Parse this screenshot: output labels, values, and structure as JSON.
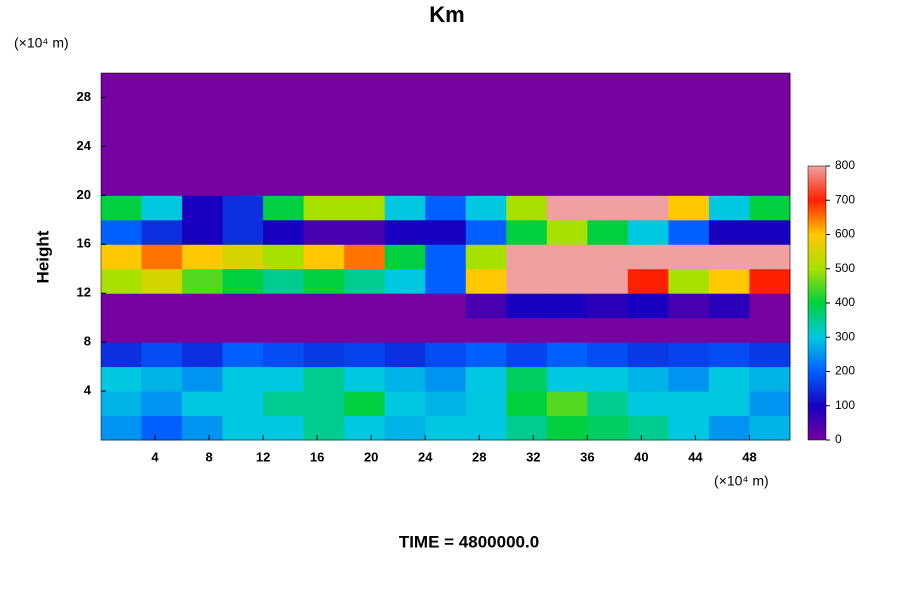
{
  "chart_data": {
    "type": "heatmap",
    "title": "Km",
    "x_unit_label": "(×10⁴ m)",
    "y_unit_label": "(×10⁴ m)",
    "ylabel": "Height",
    "footer": "TIME = 4800000.0",
    "xlim": [
      0,
      51
    ],
    "ylim": [
      0,
      30
    ],
    "xticks": [
      4,
      8,
      12,
      16,
      20,
      24,
      28,
      32,
      36,
      40,
      44,
      48
    ],
    "yticks": [
      4,
      8,
      12,
      16,
      20,
      24,
      28
    ],
    "xbins": [
      0,
      3,
      6,
      9,
      12,
      15,
      18,
      21,
      24,
      27,
      30,
      33,
      36,
      39,
      42,
      45,
      48,
      51
    ],
    "ybins": [
      0,
      2,
      4,
      6,
      8,
      10,
      12,
      14,
      16,
      18,
      20,
      22,
      24,
      26,
      28,
      30
    ],
    "z": [
      [
        250,
        200,
        250,
        300,
        300,
        350,
        300,
        280,
        300,
        300,
        350,
        400,
        380,
        350,
        300,
        250,
        280
      ],
      [
        280,
        250,
        300,
        300,
        350,
        350,
        400,
        300,
        280,
        300,
        400,
        450,
        350,
        300,
        300,
        300,
        250
      ],
      [
        300,
        280,
        250,
        300,
        300,
        350,
        300,
        280,
        250,
        300,
        380,
        300,
        300,
        280,
        250,
        300,
        280
      ],
      [
        150,
        180,
        150,
        200,
        180,
        160,
        170,
        150,
        180,
        200,
        170,
        200,
        180,
        160,
        170,
        180,
        160
      ],
      [
        0,
        0,
        0,
        0,
        0,
        0,
        0,
        0,
        0,
        0,
        0,
        0,
        0,
        0,
        0,
        0,
        0
      ],
      [
        0,
        0,
        0,
        0,
        0,
        0,
        0,
        0,
        0,
        50,
        100,
        100,
        80,
        100,
        50,
        80,
        0
      ],
      [
        500,
        550,
        450,
        400,
        350,
        400,
        350,
        300,
        200,
        600,
        800,
        800,
        800,
        700,
        500,
        600,
        700
      ],
      [
        600,
        650,
        600,
        550,
        500,
        600,
        650,
        400,
        200,
        500,
        800,
        800,
        800,
        800,
        800,
        800,
        800
      ],
      [
        200,
        150,
        100,
        150,
        100,
        50,
        50,
        100,
        100,
        200,
        400,
        500,
        400,
        300,
        200,
        100,
        100
      ],
      [
        400,
        300,
        100,
        150,
        400,
        500,
        500,
        300,
        200,
        300,
        500,
        800,
        800,
        800,
        600,
        300,
        400
      ],
      [
        0,
        0,
        0,
        0,
        0,
        0,
        0,
        0,
        0,
        0,
        0,
        0,
        0,
        0,
        0,
        0,
        0
      ],
      [
        0,
        0,
        0,
        0,
        0,
        0,
        0,
        0,
        0,
        0,
        0,
        0,
        0,
        0,
        0,
        0,
        0
      ],
      [
        0,
        0,
        0,
        0,
        0,
        0,
        0,
        0,
        0,
        0,
        0,
        0,
        0,
        0,
        0,
        0,
        0
      ],
      [
        0,
        0,
        0,
        0,
        0,
        0,
        0,
        0,
        0,
        0,
        0,
        0,
        0,
        0,
        0,
        0,
        0
      ],
      [
        0,
        0,
        0,
        0,
        0,
        0,
        0,
        0,
        0,
        0,
        0,
        0,
        0,
        0,
        0,
        0,
        0
      ]
    ],
    "clim": [
      0,
      800
    ],
    "cticks": [
      0,
      100,
      200,
      300,
      400,
      500,
      600,
      700,
      800
    ],
    "colorscale": [
      "#7600a0",
      "#1800c0",
      "#0060ff",
      "#00c8e0",
      "#00d040",
      "#a8e000",
      "#ffc800",
      "#ff2000",
      "#f0a0a0"
    ]
  }
}
